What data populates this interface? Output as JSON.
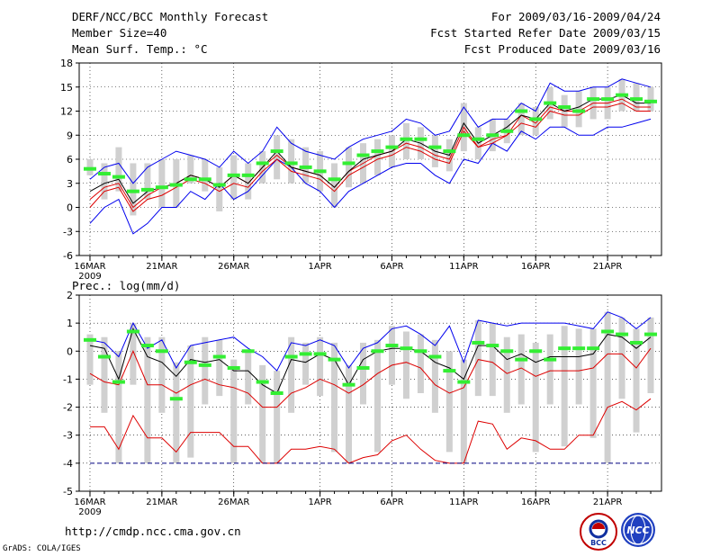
{
  "header": {
    "title": "DERF/NCC/BCC Monthly Forecast",
    "member_size": "Member Size=40",
    "variable": "Mean Surf. Temp.: °C",
    "period": "For 2009/03/16-2009/04/24",
    "start": "Fcst Started Refer Date 2009/03/15",
    "produced": "Fcst Produced Date 2009/03/16"
  },
  "precip_title": "Prec.: log(mm/d)",
  "footer": {
    "url": "http://cmdp.ncc.cma.gov.cn",
    "credit": "GrADS: COLA/IGES",
    "logo_bcc": "BCC",
    "logo_ncc": "NCC"
  },
  "colors": {
    "blue": "#0000ee",
    "black": "#000000",
    "red": "#dd0000",
    "green": "#33ee33",
    "box": "#d0d0d0",
    "dashed": "#000080"
  },
  "chart_data": [
    {
      "type": "box",
      "title": "Mean Surf. Temp.: °C",
      "x_start_date": "2009-03-16",
      "x_tick_labels": [
        "16MAR",
        "21MAR",
        "26MAR",
        "1APR",
        "6APR",
        "11APR",
        "16APR",
        "21APR"
      ],
      "x_tick_days": [
        0,
        5,
        10,
        16,
        21,
        26,
        31,
        36
      ],
      "x_sub_label": "2009",
      "ylim": [
        -6,
        18
      ],
      "yticks": [
        -6,
        -3,
        0,
        3,
        6,
        9,
        12,
        15,
        18
      ],
      "grid": true,
      "series": [
        {
          "name": "max",
          "color": "blue",
          "values": [
            -2,
            0,
            1,
            -3.3,
            -2,
            0,
            0,
            2,
            1,
            3,
            1,
            2,
            4,
            6,
            5,
            3,
            2,
            0,
            2,
            3,
            4,
            5,
            5.5,
            5.5,
            4,
            3,
            6,
            5.5,
            8,
            7,
            9.5,
            8.5,
            10,
            10,
            9,
            9,
            10,
            10,
            10.5,
            11
          ]
        },
        {
          "name": "upper",
          "color": "red",
          "values": [
            1,
            2.5,
            3,
            0,
            1.5,
            2.5,
            3,
            4,
            3.5,
            2.5,
            4,
            3,
            5,
            6.5,
            5,
            4.5,
            4,
            2.5,
            4.5,
            5.5,
            6.5,
            7,
            8,
            7.5,
            6.5,
            6,
            10,
            7.5,
            8.5,
            9,
            11.5,
            10.5,
            12.5,
            12,
            12,
            13,
            13,
            13.5,
            12.5,
            12.5
          ]
        },
        {
          "name": "mean",
          "color": "black",
          "values": [
            2,
            3,
            3.5,
            0.5,
            2,
            2.5,
            3,
            4,
            3.5,
            2.5,
            4,
            3,
            5,
            7,
            5,
            4.5,
            4,
            2.5,
            4.5,
            6,
            6.5,
            7,
            8.5,
            8,
            7,
            6.5,
            10.5,
            8,
            9,
            10,
            11.5,
            11,
            13,
            12,
            12.5,
            13.5,
            13.5,
            14,
            13,
            13
          ]
        },
        {
          "name": "lower",
          "color": "red",
          "values": [
            0,
            2,
            2.5,
            -0.5,
            1,
            1.5,
            2.5,
            3.5,
            3,
            2,
            3,
            2.5,
            4.5,
            6,
            4.5,
            4,
            3.5,
            2,
            4,
            5,
            6,
            6.5,
            7.5,
            7,
            6,
            5.5,
            9.5,
            7.5,
            8,
            9,
            10.5,
            10,
            12,
            11.5,
            11.5,
            12.5,
            12.5,
            13,
            12,
            12
          ]
        },
        {
          "name": "min",
          "color": "blue",
          "values": [
            3.5,
            5,
            5.5,
            3,
            5,
            6,
            7,
            6.5,
            6,
            5,
            7,
            5.5,
            7,
            10,
            8,
            7,
            6.5,
            6,
            7.5,
            8.5,
            9,
            9.5,
            11,
            10.5,
            9,
            9.5,
            12.5,
            10,
            11,
            11,
            13,
            12,
            15.5,
            14.5,
            14.5,
            15,
            15,
            16,
            15.5,
            15
          ]
        },
        {
          "name": "observed",
          "color": "green",
          "values": [
            4.8,
            4.2,
            3.8,
            2,
            2.2,
            2.5,
            2.8,
            3.5,
            3.5,
            2.8,
            4,
            4,
            5.5,
            7,
            5.5,
            5,
            4.5,
            3.5,
            5.5,
            6.5,
            7,
            7.5,
            8.5,
            8.5,
            7.5,
            7,
            9,
            8.5,
            9,
            9.5,
            12,
            11,
            13,
            12.5,
            12,
            13.5,
            13.5,
            14,
            13.5,
            13.2
          ]
        }
      ],
      "box_ranges": [
        [
          4,
          6
        ],
        [
          1,
          5.5
        ],
        [
          2,
          7.5
        ],
        [
          -1,
          5.5
        ],
        [
          1,
          5.5
        ],
        [
          0,
          6
        ],
        [
          0,
          6
        ],
        [
          3,
          6.5
        ],
        [
          2,
          6
        ],
        [
          -0.5,
          5
        ],
        [
          1,
          6.5
        ],
        [
          1,
          5.5
        ],
        [
          3,
          7
        ],
        [
          3.5,
          9
        ],
        [
          3,
          8.5
        ],
        [
          3,
          7.5
        ],
        [
          2,
          7
        ],
        [
          0,
          5.5
        ],
        [
          2.5,
          7.5
        ],
        [
          3,
          8
        ],
        [
          4,
          8.5
        ],
        [
          5,
          9
        ],
        [
          6,
          10.5
        ],
        [
          6,
          10
        ],
        [
          5,
          9
        ],
        [
          4.5,
          8.5
        ],
        [
          7,
          13
        ],
        [
          6,
          10
        ],
        [
          7,
          11
        ],
        [
          8,
          11
        ],
        [
          9,
          13
        ],
        [
          9,
          12.5
        ],
        [
          11,
          15
        ],
        [
          10,
          14
        ],
        [
          10,
          14.5
        ],
        [
          11,
          15
        ],
        [
          11,
          15
        ],
        [
          12,
          16
        ],
        [
          12,
          15.5
        ],
        [
          12,
          15
        ]
      ]
    },
    {
      "type": "box",
      "title": "Prec.: log(mm/d)",
      "x_start_date": "2009-03-16",
      "x_tick_labels": [
        "16MAR",
        "21MAR",
        "26MAR",
        "1APR",
        "6APR",
        "11APR",
        "16APR",
        "21APR"
      ],
      "x_tick_days": [
        0,
        5,
        10,
        16,
        21,
        26,
        31,
        36
      ],
      "x_sub_label": "2009",
      "ylim": [
        -5,
        2
      ],
      "yticks": [
        -5,
        -4,
        -3,
        -2,
        -1,
        0,
        1,
        2
      ],
      "grid": true,
      "series": [
        {
          "name": "max",
          "color": "blue",
          "values": [
            0.4,
            0.3,
            -0.2,
            1.0,
            0.1,
            0.4,
            -0.6,
            0.2,
            0.3,
            0.4,
            0.5,
            0.1,
            -0.2,
            -0.7,
            0.3,
            0.2,
            0.4,
            0.2,
            -0.6,
            0.1,
            0.3,
            0.8,
            0.9,
            0.6,
            0.2,
            0.9,
            -0.4,
            1.1,
            1.0,
            0.9,
            1.0,
            1.0,
            1.0,
            1.0,
            0.9,
            0.8,
            1.4,
            1.2,
            0.8,
            1.2
          ]
        },
        {
          "name": "mean",
          "color": "black",
          "values": [
            0.2,
            0.1,
            -1.0,
            0.8,
            -0.2,
            -0.4,
            -0.9,
            -0.3,
            -0.4,
            -0.3,
            -0.7,
            -0.7,
            -1.2,
            -1.5,
            -0.3,
            -0.4,
            -0.1,
            -0.3,
            -1.2,
            -0.3,
            0,
            0.1,
            0.1,
            0,
            -0.4,
            -0.6,
            -1.0,
            0.2,
            0.2,
            -0.3,
            -0.1,
            -0.4,
            -0.2,
            -0.2,
            -0.2,
            -0.1,
            0.6,
            0.5,
            0.1,
            0.5
          ]
        },
        {
          "name": "upper",
          "color": "red",
          "values": [
            -0.8,
            -1.1,
            -1.2,
            0,
            -1.2,
            -1.2,
            -1.5,
            -1.2,
            -1.0,
            -1.2,
            -1.3,
            -1.5,
            -2,
            -2,
            -1.5,
            -1.3,
            -1.0,
            -1.2,
            -1.5,
            -1.2,
            -0.8,
            -0.5,
            -0.4,
            -0.6,
            -1.2,
            -1.5,
            -1.3,
            -0.3,
            -0.4,
            -0.8,
            -0.6,
            -0.9,
            -0.7,
            -0.7,
            -0.7,
            -0.6,
            -0.1,
            -0.1,
            -0.6,
            0.1
          ]
        },
        {
          "name": "lower",
          "color": "red",
          "values": [
            -2.7,
            -2.7,
            -3.5,
            -2.3,
            -3.1,
            -3.1,
            -3.6,
            -2.9,
            -2.9,
            -2.9,
            -3.4,
            -3.4,
            -4,
            -4,
            -3.5,
            -3.5,
            -3.4,
            -3.5,
            -4,
            -3.8,
            -3.7,
            -3.2,
            -3.0,
            -3.5,
            -3.9,
            -4,
            -4,
            -2.5,
            -2.6,
            -3.5,
            -3.1,
            -3.2,
            -3.5,
            -3.5,
            -3.0,
            -3.0,
            -2.0,
            -1.8,
            -2.1,
            -1.7
          ]
        },
        {
          "name": "min",
          "color": "dashed",
          "values": [
            -4,
            -4,
            -4,
            -4,
            -4,
            -4,
            -4,
            -4,
            -4,
            -4,
            -4,
            -4,
            -4,
            -4,
            -4,
            -4,
            -4,
            -4,
            -4,
            -4,
            -4,
            -4,
            -4,
            -4,
            -4,
            -4,
            -4,
            -4,
            -4,
            -4,
            -4,
            -4,
            -4,
            -4,
            -4,
            -4,
            -4,
            -4,
            -4,
            -4
          ]
        },
        {
          "name": "observed",
          "color": "green",
          "values": [
            0.4,
            -0.2,
            -1.1,
            0.7,
            0.2,
            0,
            -1.7,
            -0.4,
            -0.5,
            -0.2,
            -0.6,
            0,
            -1.1,
            -1.5,
            -0.2,
            -0.1,
            -0.1,
            -0.3,
            -1.2,
            -0.6,
            0,
            0.2,
            0.1,
            0,
            -0.2,
            -0.7,
            -1.1,
            0.3,
            0.2,
            0,
            -0.3,
            0,
            -0.3,
            0.1,
            0.1,
            0.1,
            0.7,
            0.6,
            0.3,
            0.6
          ]
        }
      ],
      "box_ranges": [
        [
          -1.2,
          0.6
        ],
        [
          -2.2,
          0.5
        ],
        [
          -4,
          0
        ],
        [
          -1.2,
          1.0
        ],
        [
          -4,
          0.5
        ],
        [
          -2.2,
          0.5
        ],
        [
          -4,
          -0.4
        ],
        [
          -3.8,
          0.2
        ],
        [
          -1.9,
          0.5
        ],
        [
          -1.6,
          0.4
        ],
        [
          -4,
          -0.3
        ],
        [
          -1.9,
          0
        ],
        [
          -4,
          -0.5
        ],
        [
          -4,
          -0.7
        ],
        [
          -2.2,
          0.5
        ],
        [
          -1.2,
          0.3
        ],
        [
          -1.6,
          0.5
        ],
        [
          -3.6,
          0.3
        ],
        [
          -4,
          -0.5
        ],
        [
          -1.9,
          0.3
        ],
        [
          -3.6,
          0.4
        ],
        [
          -1.2,
          0.9
        ],
        [
          -1.7,
          0.7
        ],
        [
          -1.5,
          0.6
        ],
        [
          -2.2,
          0.4
        ],
        [
          -3.6,
          0
        ],
        [
          -4,
          -0.3
        ],
        [
          -1.6,
          1.1
        ],
        [
          -1.6,
          1.0
        ],
        [
          -2.2,
          0.5
        ],
        [
          -1.9,
          0.6
        ],
        [
          -3.6,
          0.3
        ],
        [
          -1.9,
          0.6
        ],
        [
          -3.4,
          0.9
        ],
        [
          -1.9,
          0.8
        ],
        [
          -3.1,
          0.8
        ],
        [
          -4,
          1.4
        ],
        [
          -1.7,
          1.2
        ],
        [
          -2.9,
          0.8
        ],
        [
          -1.5,
          1.2
        ]
      ]
    }
  ]
}
